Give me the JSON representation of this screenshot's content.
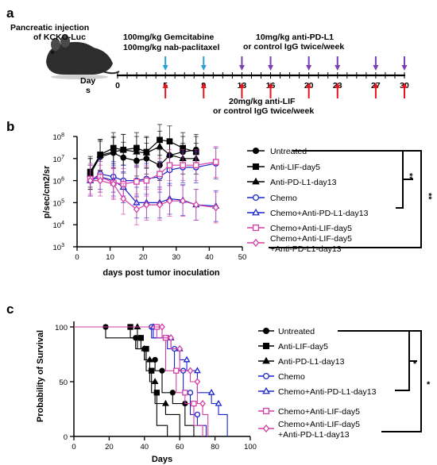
{
  "panel_a": {
    "label": "a",
    "injection_text_1": "Pancreatic injection",
    "injection_text_2": "of KCKO-Luc",
    "gem_text_1": "100mg/kg Gemcitabine",
    "gem_text_2": "100mg/kg nab-paclitaxel",
    "pdl1_text_1": "10mg/kg anti-PD-L1",
    "pdl1_text_2": "or control IgG twice/week",
    "lif_text_1": "20mg/kg anti-LIF",
    "lif_text_2": "or control IgG twice/week",
    "days_label_1": "Day",
    "days_label_2": "s",
    "timeline_ticks": [
      "0",
      "5",
      "9",
      "13",
      "16",
      "20",
      "23",
      "27",
      "30"
    ],
    "timeline_max": 30,
    "chemo_days": [
      5,
      9
    ],
    "pdl1_days": [
      13,
      16,
      20,
      23,
      27,
      30
    ],
    "lif_days": [
      5,
      9,
      13,
      16,
      20,
      23,
      27,
      30
    ],
    "colors": {
      "chemo": "#2a9fd8",
      "pdl1": "#7a3fb0",
      "lif": "#e8141b"
    }
  },
  "chart_data": [
    {
      "type": "line",
      "panel": "b",
      "ylabel": "p/sec/cm2/sr",
      "xlabel": "days post tumor inoculation",
      "xlim": [
        0,
        50
      ],
      "x_ticks": [
        "0",
        "10",
        "20",
        "30",
        "40",
        "50"
      ],
      "y_log": true,
      "ylim_log10": [
        3,
        8
      ],
      "y_tick_exps": [
        "3",
        "4",
        "5",
        "6",
        "7",
        "8"
      ],
      "y_tick_base": "10",
      "significance": [
        "**",
        "**"
      ],
      "series": [
        {
          "name": "Untreated",
          "color": "#000000",
          "marker": "circle-filled",
          "x": [
            4,
            7,
            11,
            14,
            18,
            21,
            25,
            28,
            32,
            36
          ],
          "y": [
            2000000,
            12000000,
            18000000,
            11000000,
            8000000,
            10000000,
            5000000,
            14000000,
            20000000,
            25000000
          ]
        },
        {
          "name": "Anti-LIF-day5",
          "color": "#000000",
          "marker": "square-filled",
          "x": [
            4,
            7,
            11,
            14,
            18,
            21,
            25,
            28,
            32,
            36
          ],
          "y": [
            2500000,
            15000000,
            30000000,
            25000000,
            30000000,
            20000000,
            70000000,
            60000000,
            30000000,
            20000000
          ]
        },
        {
          "name": "Anti-PD-L1-day13",
          "color": "#000000",
          "marker": "triangle-filled",
          "x": [
            4,
            7,
            11,
            14,
            18,
            21,
            25,
            28,
            32,
            36
          ],
          "y": [
            2000000,
            14000000,
            20000000,
            25000000,
            20000000,
            18000000,
            35000000,
            15000000,
            10000000,
            10000000
          ]
        },
        {
          "name": "Chemo",
          "color": "#1a25c9",
          "marker": "circle-open",
          "x": [
            4,
            7,
            11,
            14,
            18,
            21,
            25,
            28,
            32,
            36,
            42
          ],
          "y": [
            1000000,
            2000000,
            1500000,
            1000000,
            1000000,
            1200000,
            1500000,
            3000000,
            4000000,
            4000000,
            6000000
          ]
        },
        {
          "name": "Chemo+Anti-PD-L1-day13",
          "color": "#1a25c9",
          "marker": "triangle-open",
          "x": [
            4,
            7,
            11,
            14,
            18,
            21,
            25,
            28,
            32,
            36,
            42
          ],
          "y": [
            1000000,
            1500000,
            1000000,
            500000,
            100000,
            100000,
            100000,
            150000,
            130000,
            80000,
            70000
          ]
        },
        {
          "name": "Chemo+Anti-LIF-day5",
          "color": "#d33fa6",
          "marker": "square-open",
          "x": [
            4,
            7,
            11,
            14,
            18,
            21,
            25,
            28,
            32,
            36,
            42
          ],
          "y": [
            1200000,
            1500000,
            800000,
            700000,
            900000,
            1000000,
            2000000,
            5000000,
            5000000,
            5000000,
            7000000
          ]
        },
        {
          "name": "Chemo+Anti-LIF-day5+Anti-PD-L1-day13",
          "color": "#d33fa6",
          "marker": "diamond-open",
          "legend_lines": [
            "Chemo+Anti-LIF-day5",
            "+Anti-PD-L1-day13"
          ],
          "x": [
            4,
            7,
            11,
            14,
            18,
            21,
            25,
            28,
            32,
            36,
            42
          ],
          "y": [
            1000000,
            1000000,
            700000,
            150000,
            50000,
            80000,
            80000,
            120000,
            120000,
            80000,
            60000
          ]
        }
      ]
    },
    {
      "type": "line",
      "panel": "c",
      "step": true,
      "ylabel": "Probability of Survival",
      "xlabel": "Days",
      "xlim": [
        0,
        100
      ],
      "ylim": [
        0,
        100
      ],
      "x_ticks": [
        "0",
        "20",
        "40",
        "60",
        "80",
        "100"
      ],
      "y_ticks": [
        "0",
        "50",
        "100"
      ],
      "significance": [
        "*",
        "*"
      ],
      "series": [
        {
          "name": "Untreated",
          "color": "#000000",
          "marker": "circle-filled",
          "x": [
            0,
            18,
            35,
            40,
            46,
            50,
            56,
            63,
            68
          ],
          "y": [
            100,
            90,
            80,
            70,
            60,
            40,
            30,
            10,
            0
          ]
        },
        {
          "name": "Anti-LIF-day5",
          "color": "#000000",
          "marker": "square-filled",
          "x": [
            0,
            32,
            38,
            41,
            44,
            47,
            53
          ],
          "y": [
            100,
            90,
            80,
            60,
            40,
            10,
            0
          ]
        },
        {
          "name": "Anti-PD-L1-day13",
          "color": "#000000",
          "marker": "triangle-filled",
          "x": [
            0,
            36,
            40,
            43,
            46,
            52,
            60
          ],
          "y": [
            100,
            80,
            70,
            50,
            30,
            20,
            0
          ]
        },
        {
          "name": "Chemo",
          "color": "#1a25c9",
          "marker": "circle-open",
          "x": [
            0,
            44,
            53,
            57,
            62,
            66,
            70,
            75
          ],
          "y": [
            100,
            90,
            80,
            60,
            40,
            20,
            10,
            0
          ]
        },
        {
          "name": "Chemo+Anti-PD-L1-day13",
          "color": "#1a25c9",
          "marker": "triangle-open",
          "x": [
            0,
            45,
            55,
            60,
            64,
            70,
            78,
            82,
            87
          ],
          "y": [
            100,
            90,
            80,
            70,
            60,
            40,
            30,
            20,
            0
          ]
        },
        {
          "name": "Chemo+Anti-LIF-day5",
          "color": "#d33fa6",
          "marker": "square-open",
          "x": [
            0,
            47,
            52,
            58,
            63,
            68,
            73
          ],
          "y": [
            100,
            90,
            60,
            40,
            30,
            10,
            0
          ]
        },
        {
          "name": "Chemo+Anti-LIF-day5+Anti-PD-L1-day13",
          "color": "#d33fa6",
          "marker": "diamond-open",
          "legend_lines": [
            "Chemo+Anti-LIF-day5",
            "+Anti-PD-L1-day13"
          ],
          "x": [
            0,
            50,
            55,
            60,
            66,
            70,
            73,
            76
          ],
          "y": [
            100,
            90,
            80,
            60,
            50,
            30,
            20,
            0
          ]
        }
      ]
    }
  ]
}
